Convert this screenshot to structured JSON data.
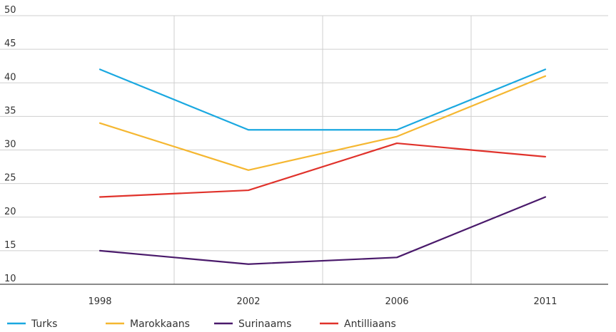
{
  "chart_data": {
    "type": "line",
    "title": "",
    "xlabel": "",
    "ylabel": "",
    "categories": [
      "1998",
      "2002",
      "2006",
      "2011"
    ],
    "ylim": [
      10,
      50
    ],
    "yticks": [
      10,
      15,
      20,
      25,
      30,
      35,
      40,
      45,
      50
    ],
    "grid": "horizontal and vertical",
    "legend_position": "bottom-left",
    "series": [
      {
        "name": "Turks",
        "color": "#1aa8e0",
        "values": [
          42,
          33,
          33,
          42
        ]
      },
      {
        "name": "Marokkaans",
        "color": "#f5b731",
        "values": [
          34,
          27,
          32,
          41
        ]
      },
      {
        "name": "Surinaams",
        "color": "#4a1a6b",
        "values": [
          15,
          13,
          14,
          23
        ]
      },
      {
        "name": "Antilliaans",
        "color": "#e0322b",
        "values": [
          23,
          24,
          31,
          29
        ]
      }
    ]
  }
}
